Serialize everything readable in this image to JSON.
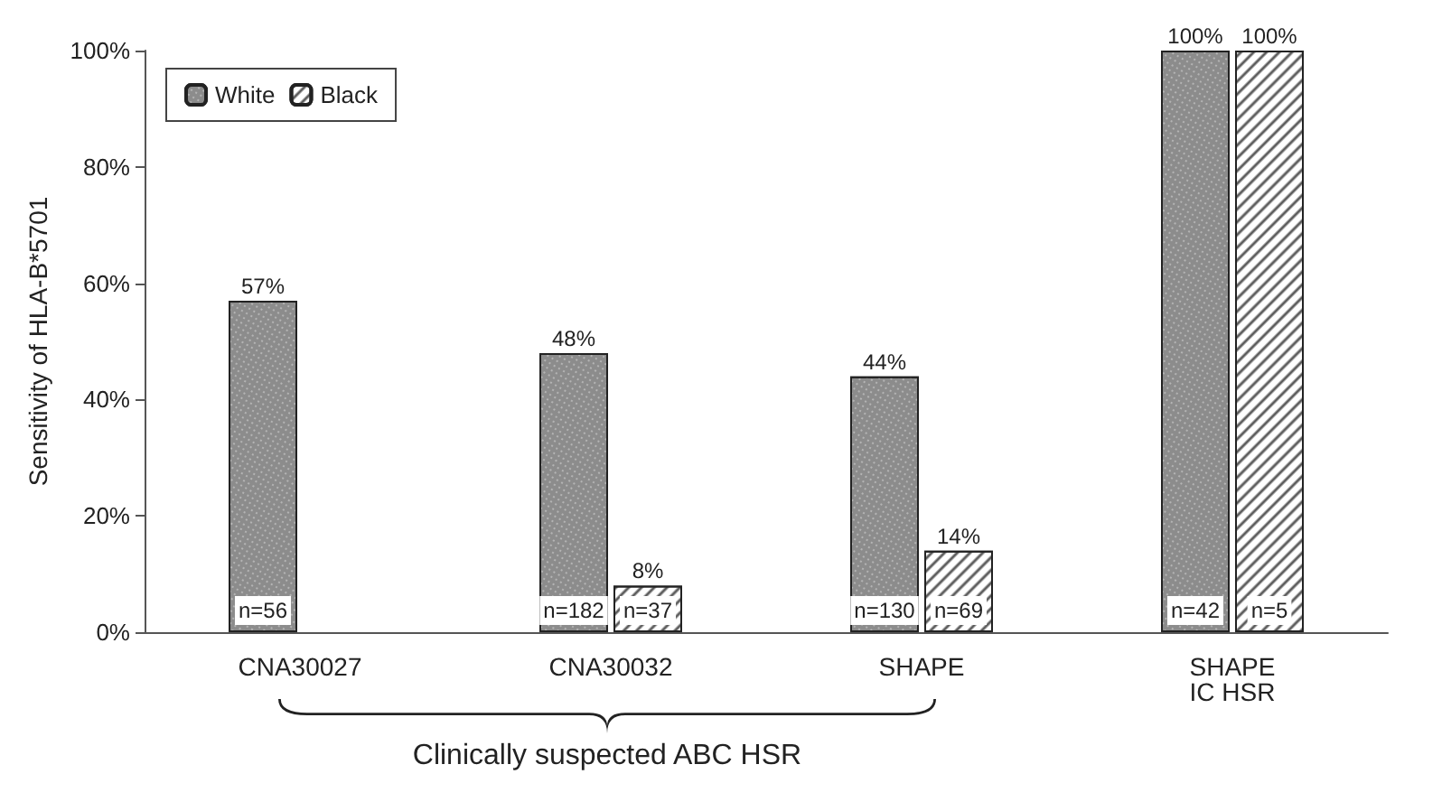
{
  "chart_data": {
    "type": "bar",
    "ylabel": "Sensitivity of HLA-B*5701",
    "categories": [
      "CNA30027",
      "CNA30032",
      "SHAPE",
      "SHAPE\nIC HSR"
    ],
    "series": [
      {
        "name": "White",
        "color": "#8c8c8c",
        "values": [
          57,
          48,
          44,
          100
        ],
        "value_labels": [
          "57%",
          "48%",
          "44%",
          "100%"
        ]
      },
      {
        "name": "Black",
        "color": "#ffffff",
        "values": [
          null,
          8,
          14,
          100
        ],
        "value_labels": [
          null,
          "8%",
          "14%",
          "100%"
        ]
      }
    ],
    "ylim": [
      0,
      100
    ],
    "yticks": [
      {
        "value": 0,
        "label": "0%"
      },
      {
        "value": 20,
        "label": "20%"
      },
      {
        "value": 40,
        "label": "40%"
      },
      {
        "value": 60,
        "label": "60%"
      },
      {
        "value": 80,
        "label": "80%"
      },
      {
        "value": 100,
        "label": "100%"
      }
    ],
    "grid": false,
    "legend": "top left",
    "annotations": [
      {
        "text": "n=56",
        "x": "CNA30027",
        "y": 0
      },
      {
        "text": "n=182",
        "x": "CNA30032",
        "y": 0
      },
      {
        "text": "n=37",
        "x": "CNA30032",
        "y": 0
      },
      {
        "text": "n=130",
        "x": "SHAPE",
        "y": 0
      },
      {
        "text": "n=69",
        "x": "SHAPE",
        "y": 0
      },
      {
        "text": "n=42",
        "x": "SHAPE\nIC HSR",
        "y": 0
      },
      {
        "text": "n=5",
        "x": "SHAPE\nIC HSR",
        "y": 0
      },
      "Clinically suspected ABC HSR"
    ]
  }
}
